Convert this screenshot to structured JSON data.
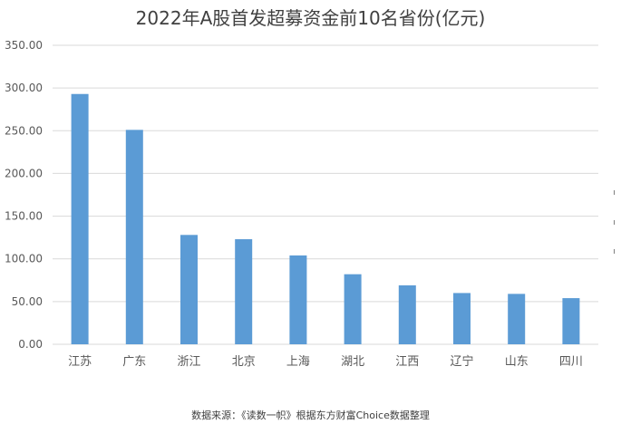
{
  "chart_data": {
    "type": "bar",
    "title": "2022年A股首发超募资金前10名省份(亿元)",
    "categories": [
      "江苏",
      "广东",
      "浙江",
      "北京",
      "上海",
      "湖北",
      "江西",
      "辽宁",
      "山东",
      "四川"
    ],
    "values": [
      293,
      251,
      128,
      123,
      104,
      82,
      69,
      60,
      59,
      54
    ],
    "ylim": [
      0,
      350
    ],
    "yticks": [
      "0.00",
      "50.00",
      "100.00",
      "150.00",
      "200.00",
      "250.00",
      "300.00",
      "350.00"
    ],
    "grid": true,
    "bar_color": "#5b9bd5",
    "grid_color": "#d9d9d9",
    "axis_text_color": "#595959",
    "xlabel": "",
    "ylabel": ""
  },
  "source": "数据来源：《读数一帜》根据东方财富Choice数据整理"
}
